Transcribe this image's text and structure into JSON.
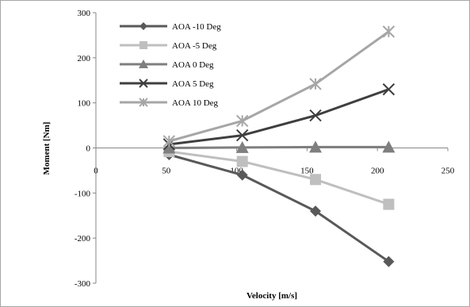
{
  "chart_data": {
    "type": "line",
    "title": "",
    "xlabel": "Velocity [m/s]",
    "ylabel": "Moment [Nm]",
    "xlim": [
      0,
      250
    ],
    "ylim": [
      -300,
      300
    ],
    "xticks": [
      0,
      50,
      100,
      150,
      200,
      250
    ],
    "yticks": [
      -300,
      -200,
      -100,
      0,
      100,
      200,
      300
    ],
    "xtick_labels": [
      "0",
      "50",
      "100",
      "150",
      "200",
      "250"
    ],
    "ytick_labels": [
      "-300",
      "-200",
      "-100",
      "0",
      "100",
      "200",
      "300"
    ],
    "grid": false,
    "legend_position": "top-left",
    "x": [
      52,
      104,
      156,
      208
    ],
    "series": [
      {
        "name": "AOA -10 Deg",
        "values": [
          -15,
          -60,
          -140,
          -252
        ],
        "marker": "diamond",
        "color": "#595959"
      },
      {
        "name": "AOA -5 Deg",
        "values": [
          -8,
          -30,
          -70,
          -125
        ],
        "marker": "square",
        "color": "#bfbfbf"
      },
      {
        "name": "AOA 0 Deg",
        "values": [
          0,
          1,
          2,
          2
        ],
        "marker": "triangle",
        "color": "#7f7f7f"
      },
      {
        "name": "AOA 5 Deg",
        "values": [
          8,
          28,
          72,
          130
        ],
        "marker": "x",
        "color": "#3f3f3f"
      },
      {
        "name": "AOA 10 Deg",
        "values": [
          15,
          60,
          142,
          258
        ],
        "marker": "star",
        "color": "#a6a6a6"
      }
    ]
  }
}
